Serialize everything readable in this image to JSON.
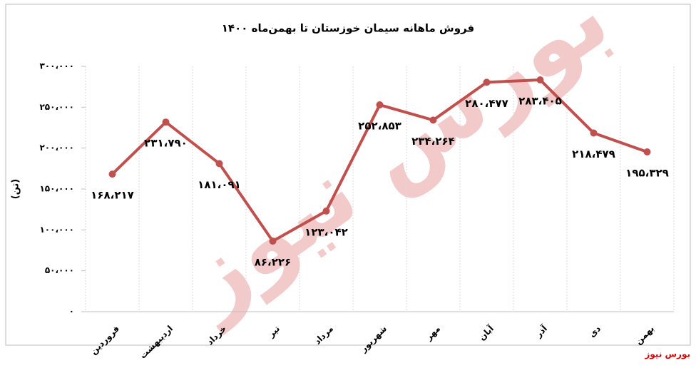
{
  "chart_data": {
    "type": "line",
    "title": "فروش ماهانه سیمان خوزستان تا بهمن‌ماه ۱۴۰۰",
    "y_label": "(تن)",
    "watermark": "بورس نیوز",
    "source": "بورس نیوز",
    "categories": [
      "فروردین",
      "اردیبهشت",
      "خرداد",
      "تیر",
      "مرداد",
      "شهریور",
      "مهر",
      "آبان",
      "آذر",
      "دی",
      "بهمن"
    ],
    "series": [
      {
        "name": "فروش",
        "color": "#c0504d",
        "values": [
          168217,
          231790,
          181091,
          86226,
          123042,
          252853,
          234264,
          280477,
          283405,
          218479,
          195329
        ],
        "value_labels": [
          "۱۶۸،۲۱۷",
          "۲۳۱،۷۹۰",
          "۱۸۱،۰۹۱",
          "۸۶،۲۲۶",
          "۱۲۳،۰۴۲",
          "۲۵۲،۸۵۳",
          "۲۳۴،۲۶۴",
          "۲۸۰،۴۷۷",
          "۲۸۳،۴۰۵",
          "۲۱۸،۴۷۹",
          "۱۹۵،۳۲۹"
        ]
      }
    ],
    "ylim": [
      0,
      300000
    ],
    "yticks": [
      {
        "value": 0,
        "label": "۰"
      },
      {
        "value": 50000,
        "label": "۵۰،۰۰۰"
      },
      {
        "value": 100000,
        "label": "۱۰۰،۰۰۰"
      },
      {
        "value": 150000,
        "label": "۱۵۰،۰۰۰"
      },
      {
        "value": 200000,
        "label": "۲۰۰،۰۰۰"
      },
      {
        "value": 250000,
        "label": "۲۵۰،۰۰۰"
      },
      {
        "value": 300000,
        "label": "۳۰۰،۰۰۰"
      }
    ]
  }
}
